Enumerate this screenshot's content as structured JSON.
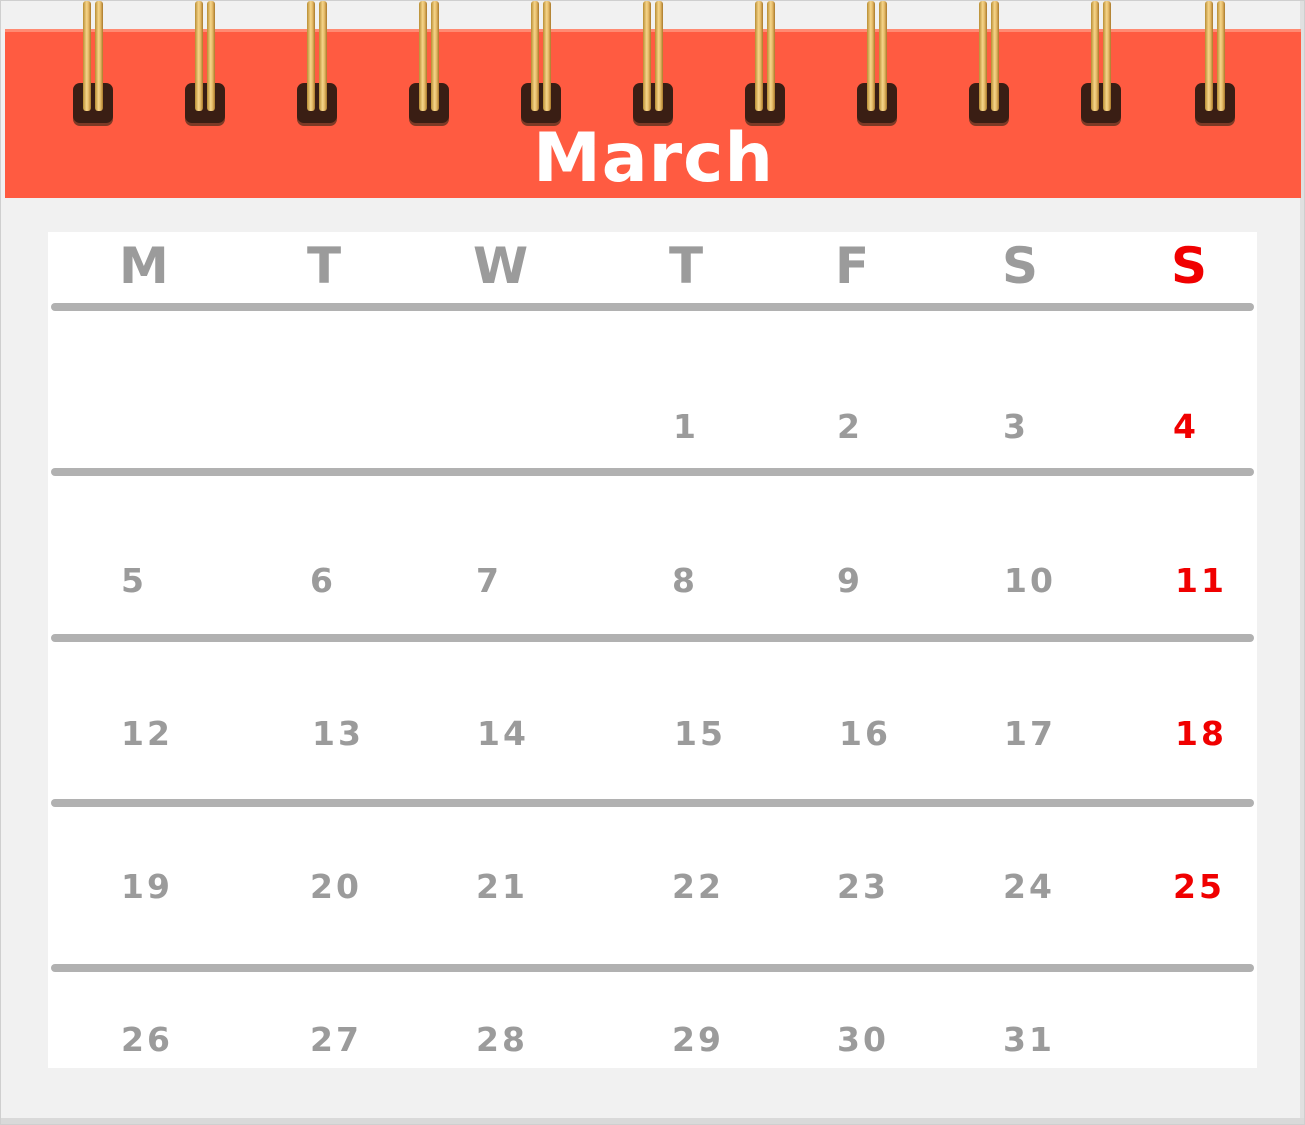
{
  "calendar": {
    "month": "March",
    "weekday_headers": [
      "M",
      "T",
      "W",
      "T",
      "F",
      "S",
      "S"
    ],
    "weeks": [
      [
        "",
        "",
        "",
        "1",
        "2",
        "3",
        "4"
      ],
      [
        "5",
        "6",
        "7",
        "8",
        "9",
        "10",
        "11"
      ],
      [
        "12",
        "13",
        "14",
        "15",
        "16",
        "17",
        "18"
      ],
      [
        "19",
        "20",
        "21",
        "22",
        "23",
        "24",
        "25"
      ],
      [
        "26",
        "27",
        "28",
        "29",
        "30",
        "31",
        ""
      ]
    ],
    "colors": {
      "header": "#ff5b41",
      "weekday_text": "#9b9b9b",
      "sunday_text": "#f00000",
      "rule": "#b1b1b1"
    }
  }
}
